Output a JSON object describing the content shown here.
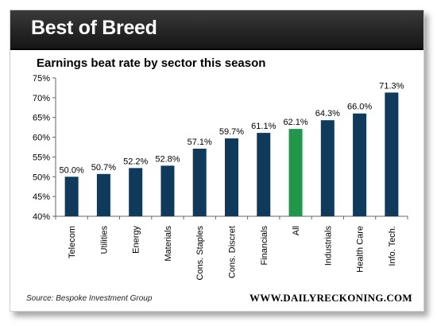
{
  "header": {
    "title": "Best of Breed"
  },
  "footer": {
    "source": "Source: Bespoke Investment Group",
    "brand": "WWW.DAILYRECKONING.COM"
  },
  "colors": {
    "bar": "#0f3a5c",
    "highlight": "#21974a",
    "header": "#222222"
  },
  "chart_data": {
    "type": "bar",
    "title": "Earnings beat rate by sector this season",
    "xlabel": "",
    "ylabel": "",
    "ylim": [
      40,
      75
    ],
    "yticks": [
      40,
      45,
      50,
      55,
      60,
      65,
      70,
      75
    ],
    "ytick_labels": [
      "40%",
      "45%",
      "50%",
      "55%",
      "60%",
      "65%",
      "70%",
      "75%"
    ],
    "categories": [
      "Telecom",
      "Utilities",
      "Energy",
      "Materials",
      "Cons. Staples",
      "Cons. Discret",
      "Financials",
      "All",
      "Industrials",
      "Health Care",
      "Info. Tech."
    ],
    "values": [
      50.0,
      50.7,
      52.2,
      52.8,
      57.1,
      59.7,
      61.1,
      62.1,
      64.3,
      66.0,
      71.3
    ],
    "value_labels": [
      "50.0%",
      "50.7%",
      "52.2%",
      "52.8%",
      "57.1%",
      "59.7%",
      "61.1%",
      "62.1%",
      "64.3%",
      "66.0%",
      "71.3%"
    ],
    "highlight_category": "All",
    "grid": false
  }
}
